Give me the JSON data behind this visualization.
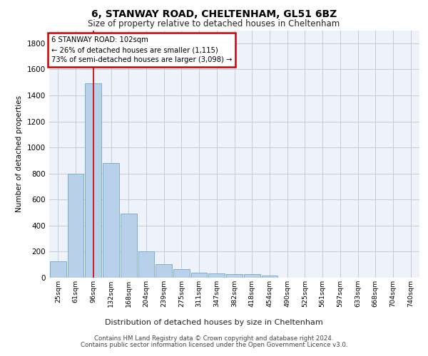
{
  "title1": "6, STANWAY ROAD, CHELTENHAM, GL51 6BZ",
  "title2": "Size of property relative to detached houses in Cheltenham",
  "xlabel": "Distribution of detached houses by size in Cheltenham",
  "ylabel": "Number of detached properties",
  "categories": [
    "25sqm",
    "61sqm",
    "96sqm",
    "132sqm",
    "168sqm",
    "204sqm",
    "239sqm",
    "275sqm",
    "311sqm",
    "347sqm",
    "382sqm",
    "418sqm",
    "454sqm",
    "490sqm",
    "525sqm",
    "561sqm",
    "597sqm",
    "633sqm",
    "668sqm",
    "704sqm",
    "740sqm"
  ],
  "values": [
    125,
    800,
    1490,
    880,
    490,
    205,
    105,
    65,
    40,
    35,
    30,
    25,
    15,
    0,
    0,
    0,
    0,
    0,
    0,
    0,
    0
  ],
  "bar_color": "#b8d0e8",
  "bar_edge_color": "#7aafd4",
  "annotation_text_line1": "6 STANWAY ROAD: 102sqm",
  "annotation_text_line2": "← 26% of detached houses are smaller (1,115)",
  "annotation_text_line3": "73% of semi-detached houses are larger (3,098) →",
  "annotation_box_facecolor": "#ffffff",
  "annotation_box_edgecolor": "#cc0000",
  "vline_color": "#cc0000",
  "grid_color": "#c8c8d8",
  "background_color": "#eef2fa",
  "footer1": "Contains HM Land Registry data © Crown copyright and database right 2024.",
  "footer2": "Contains public sector information licensed under the Open Government Licence v3.0.",
  "ylim": [
    0,
    1900
  ],
  "yticks": [
    0,
    200,
    400,
    600,
    800,
    1000,
    1200,
    1400,
    1600,
    1800
  ]
}
